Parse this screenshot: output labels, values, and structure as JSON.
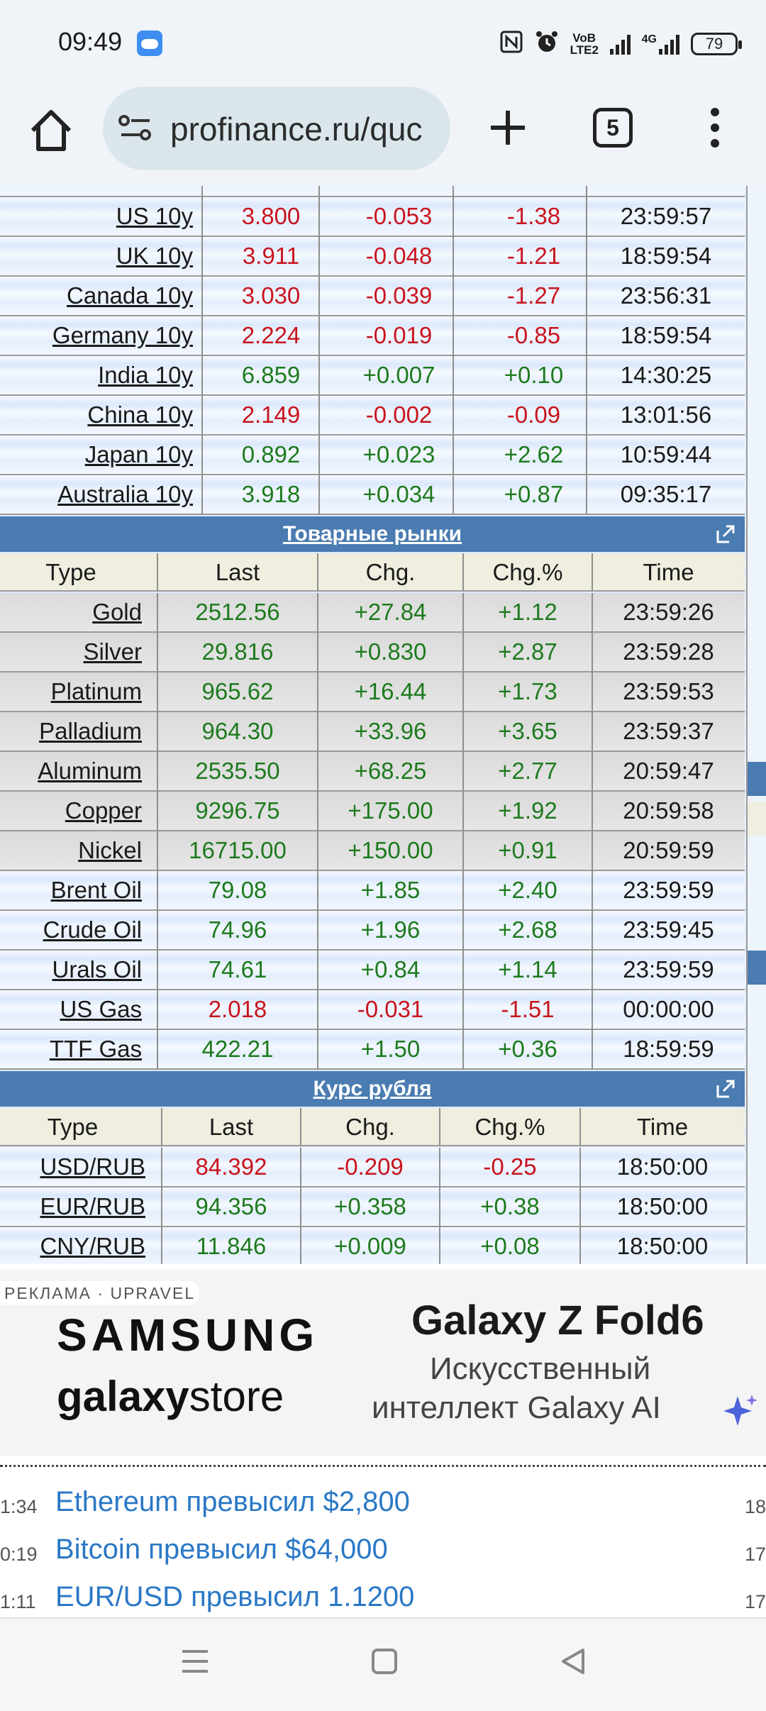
{
  "status_bar": {
    "time": "09:49",
    "battery": "79",
    "icons": [
      "weather-icon",
      "nfc-icon",
      "alarm-icon",
      "volte-icon",
      "signal-icon",
      "4g-signal-icon",
      "battery-icon"
    ],
    "network": "4G",
    "volte": "VoB LTE2"
  },
  "browser": {
    "url": "profinance.ru/quc",
    "tab_count": "5"
  },
  "bonds": [
    {
      "name": "US 10y",
      "last": "3.800",
      "chg": "-0.053",
      "pct": "-1.38",
      "time": "23:59:57",
      "dir": "neg"
    },
    {
      "name": "UK 10y",
      "last": "3.911",
      "chg": "-0.048",
      "pct": "-1.21",
      "time": "18:59:54",
      "dir": "neg"
    },
    {
      "name": "Canada 10y",
      "last": "3.030",
      "chg": "-0.039",
      "pct": "-1.27",
      "time": "23:56:31",
      "dir": "neg"
    },
    {
      "name": "Germany 10y",
      "last": "2.224",
      "chg": "-0.019",
      "pct": "-0.85",
      "time": "18:59:54",
      "dir": "neg"
    },
    {
      "name": "India 10y",
      "last": "6.859",
      "chg": "+0.007",
      "pct": "+0.10",
      "time": "14:30:25",
      "dir": "pos"
    },
    {
      "name": "China 10y",
      "last": "2.149",
      "chg": "-0.002",
      "pct": "-0.09",
      "time": "13:01:56",
      "dir": "neg"
    },
    {
      "name": "Japan 10y",
      "last": "0.892",
      "chg": "+0.023",
      "pct": "+2.62",
      "time": "10:59:44",
      "dir": "pos"
    },
    {
      "name": "Australia 10y",
      "last": "3.918",
      "chg": "+0.034",
      "pct": "+0.87",
      "time": "09:35:17",
      "dir": "pos"
    }
  ],
  "commodities": {
    "title": "Товарные рынки",
    "headers": [
      "Type",
      "Last",
      "Chg.",
      "Chg.%",
      "Time"
    ],
    "rows": [
      {
        "name": "Gold",
        "last": "2512.56",
        "chg": "+27.84",
        "pct": "+1.12",
        "time": "23:59:26",
        "dir": "pos"
      },
      {
        "name": "Silver",
        "last": "29.816",
        "chg": "+0.830",
        "pct": "+2.87",
        "time": "23:59:28",
        "dir": "pos"
      },
      {
        "name": "Platinum",
        "last": "965.62",
        "chg": "+16.44",
        "pct": "+1.73",
        "time": "23:59:53",
        "dir": "pos"
      },
      {
        "name": "Palladium",
        "last": "964.30",
        "chg": "+33.96",
        "pct": "+3.65",
        "time": "23:59:37",
        "dir": "pos"
      },
      {
        "name": "Aluminum",
        "last": "2535.50",
        "chg": "+68.25",
        "pct": "+2.77",
        "time": "20:59:47",
        "dir": "pos"
      },
      {
        "name": "Copper",
        "last": "9296.75",
        "chg": "+175.00",
        "pct": "+1.92",
        "time": "20:59:58",
        "dir": "pos"
      },
      {
        "name": "Nickel",
        "last": "16715.00",
        "chg": "+150.00",
        "pct": "+0.91",
        "time": "20:59:59",
        "dir": "pos"
      },
      {
        "name": "Brent Oil",
        "last": "79.08",
        "chg": "+1.85",
        "pct": "+2.40",
        "time": "23:59:59",
        "dir": "pos"
      },
      {
        "name": "Crude Oil",
        "last": "74.96",
        "chg": "+1.96",
        "pct": "+2.68",
        "time": "23:59:45",
        "dir": "pos"
      },
      {
        "name": "Urals Oil",
        "last": "74.61",
        "chg": "+0.84",
        "pct": "+1.14",
        "time": "23:59:59",
        "dir": "pos"
      },
      {
        "name": "US Gas",
        "last": "2.018",
        "chg": "-0.031",
        "pct": "-1.51",
        "time": "00:00:00",
        "dir": "neg"
      },
      {
        "name": "TTF Gas",
        "last": "422.21",
        "chg": "+1.50",
        "pct": "+0.36",
        "time": "18:59:59",
        "dir": "pos"
      }
    ]
  },
  "ruble": {
    "title": "Курс рубля",
    "headers": [
      "Type",
      "Last",
      "Chg.",
      "Chg.%",
      "Time"
    ],
    "rows": [
      {
        "name": "USD/RUB",
        "last": "84.392",
        "chg": "-0.209",
        "pct": "-0.25",
        "time": "18:50:00",
        "dir": "neg"
      },
      {
        "name": "EUR/RUB",
        "last": "94.356",
        "chg": "+0.358",
        "pct": "+0.38",
        "time": "18:50:00",
        "dir": "pos"
      },
      {
        "name": "CNY/RUB",
        "last": "11.846",
        "chg": "+0.009",
        "pct": "+0.08",
        "time": "18:50:00",
        "dir": "pos"
      }
    ]
  },
  "ad": {
    "label": "РЕКЛАМА · UPRAVEL",
    "brand": "SAMSUNG",
    "store_bold": "galaxy",
    "store_rest": "store",
    "product": "Galaxy Z Fold6",
    "tagline1": "Искусственный",
    "tagline2": "интеллект Galaxy AI"
  },
  "news": [
    {
      "time": "1:34",
      "title": "Ethereum превысил $2,800",
      "right": "18"
    },
    {
      "time": "0:19",
      "title": "Bitcoin превысил $64,000",
      "right": "17"
    },
    {
      "time": "1:11",
      "title": "EUR/USD превысил 1.1200",
      "right": "17"
    }
  ]
}
